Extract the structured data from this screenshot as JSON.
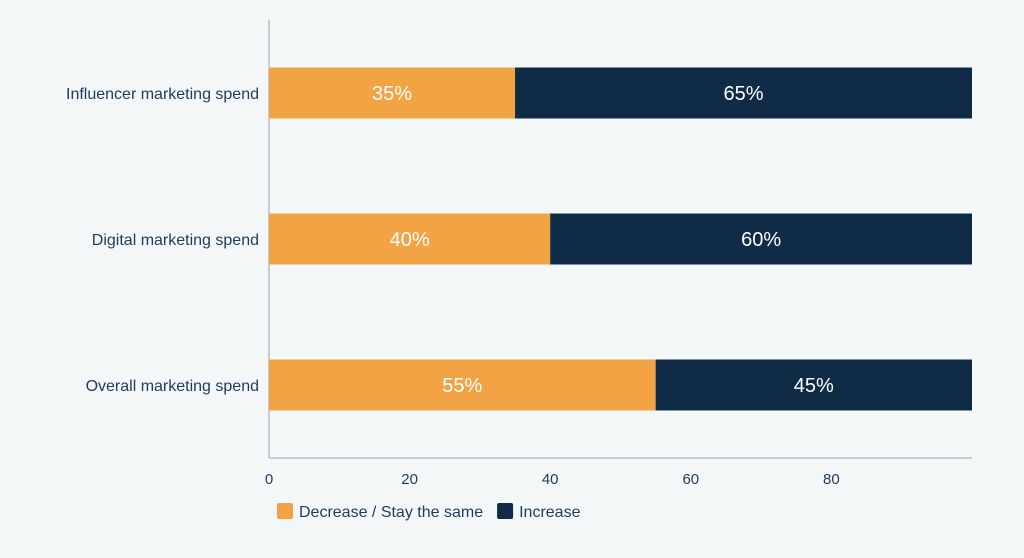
{
  "chart_data": {
    "type": "bar",
    "orientation": "horizontal",
    "stacked": true,
    "categories": [
      "Influencer marketing spend",
      "Digital marketing spend",
      "Overall marketing spend"
    ],
    "series": [
      {
        "name": "Decrease / Stay the same",
        "values": [
          35,
          40,
          55
        ],
        "labels": [
          "35%",
          "40%",
          "55%"
        ],
        "color": "#f2a444"
      },
      {
        "name": "Increase",
        "values": [
          65,
          60,
          45
        ],
        "labels": [
          "65%",
          "60%",
          "45%"
        ],
        "color": "#0f2b46"
      }
    ],
    "xticks": [
      "0",
      "20",
      "40",
      "60",
      "80"
    ],
    "xlim": [
      0,
      100
    ],
    "grid": false,
    "legend_position": "bottom-left"
  }
}
